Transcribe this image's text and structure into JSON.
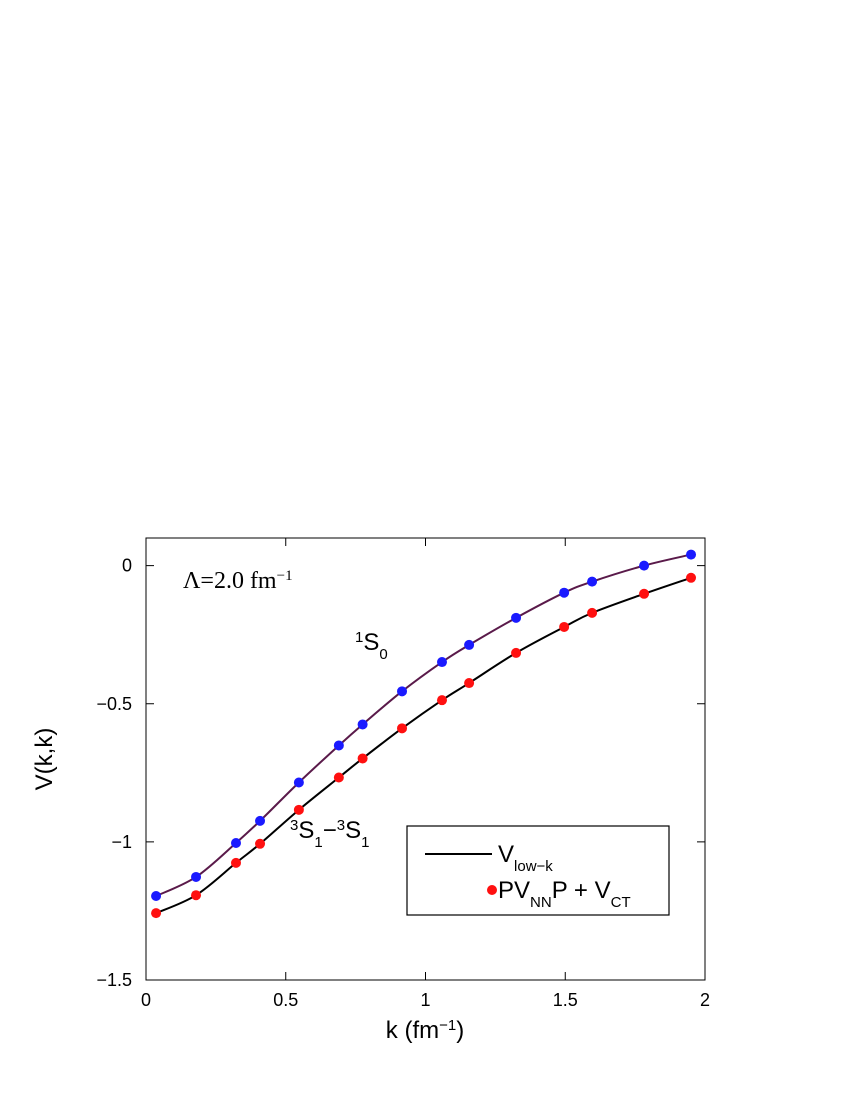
{
  "chart_data": {
    "type": "line",
    "xlabel": [
      {
        "t": "k (fm"
      },
      {
        "t": "−1",
        "s": "sup"
      },
      {
        "t": ")"
      }
    ],
    "ylabel": "V(k,k)",
    "xlim": [
      0,
      2
    ],
    "ylim": [
      -1.5,
      0.1
    ],
    "xticks": [
      0,
      0.5,
      1,
      1.5,
      2
    ],
    "yticks": [
      -1.5,
      -1,
      -0.5,
      0
    ],
    "x": [
      0.036,
      0.179,
      0.322,
      0.408,
      0.547,
      0.69,
      0.775,
      0.916,
      1.059,
      1.156,
      1.324,
      1.496,
      1.596,
      1.782,
      1.95
    ],
    "series": [
      {
        "line_color": "#5a1a4a",
        "marker_color": "#1a1aff",
        "values": [
          -1.196,
          -1.127,
          -1.004,
          -0.924,
          -0.785,
          -0.651,
          -0.575,
          -0.455,
          -0.349,
          -0.287,
          -0.189,
          -0.098,
          -0.058,
          0,
          0.04
        ]
      },
      {
        "line_color": "#000000",
        "marker_color": "#ff1010",
        "values": [
          -1.258,
          -1.193,
          -1.076,
          -1.007,
          -0.884,
          -0.767,
          -0.698,
          -0.589,
          -0.487,
          -0.425,
          -0.316,
          -0.222,
          -0.171,
          -0.102,
          -0.044
        ]
      }
    ],
    "legend": [
      [
        {
          "t": "V"
        },
        {
          "t": "low−k",
          "s": "sub"
        }
      ],
      [
        {
          "t": "PV"
        },
        {
          "t": "NN",
          "s": "sub"
        },
        {
          "t": "P + V"
        },
        {
          "t": "CT",
          "s": "sub"
        }
      ]
    ],
    "annotations": [
      [
        {
          "t": "Λ=2.0 fm"
        },
        {
          "t": "−1",
          "s": "sup"
        }
      ],
      [
        {
          "t": "1",
          "s": "sup"
        },
        {
          "t": "S"
        },
        {
          "t": "0",
          "s": "sub"
        }
      ],
      [
        {
          "t": "3",
          "s": "sup"
        },
        {
          "t": "S"
        },
        {
          "t": "1",
          "s": "sub"
        },
        {
          "t": "−"
        },
        {
          "t": "3",
          "s": "sup"
        },
        {
          "t": "S"
        },
        {
          "t": "1",
          "s": "sub"
        }
      ]
    ]
  }
}
